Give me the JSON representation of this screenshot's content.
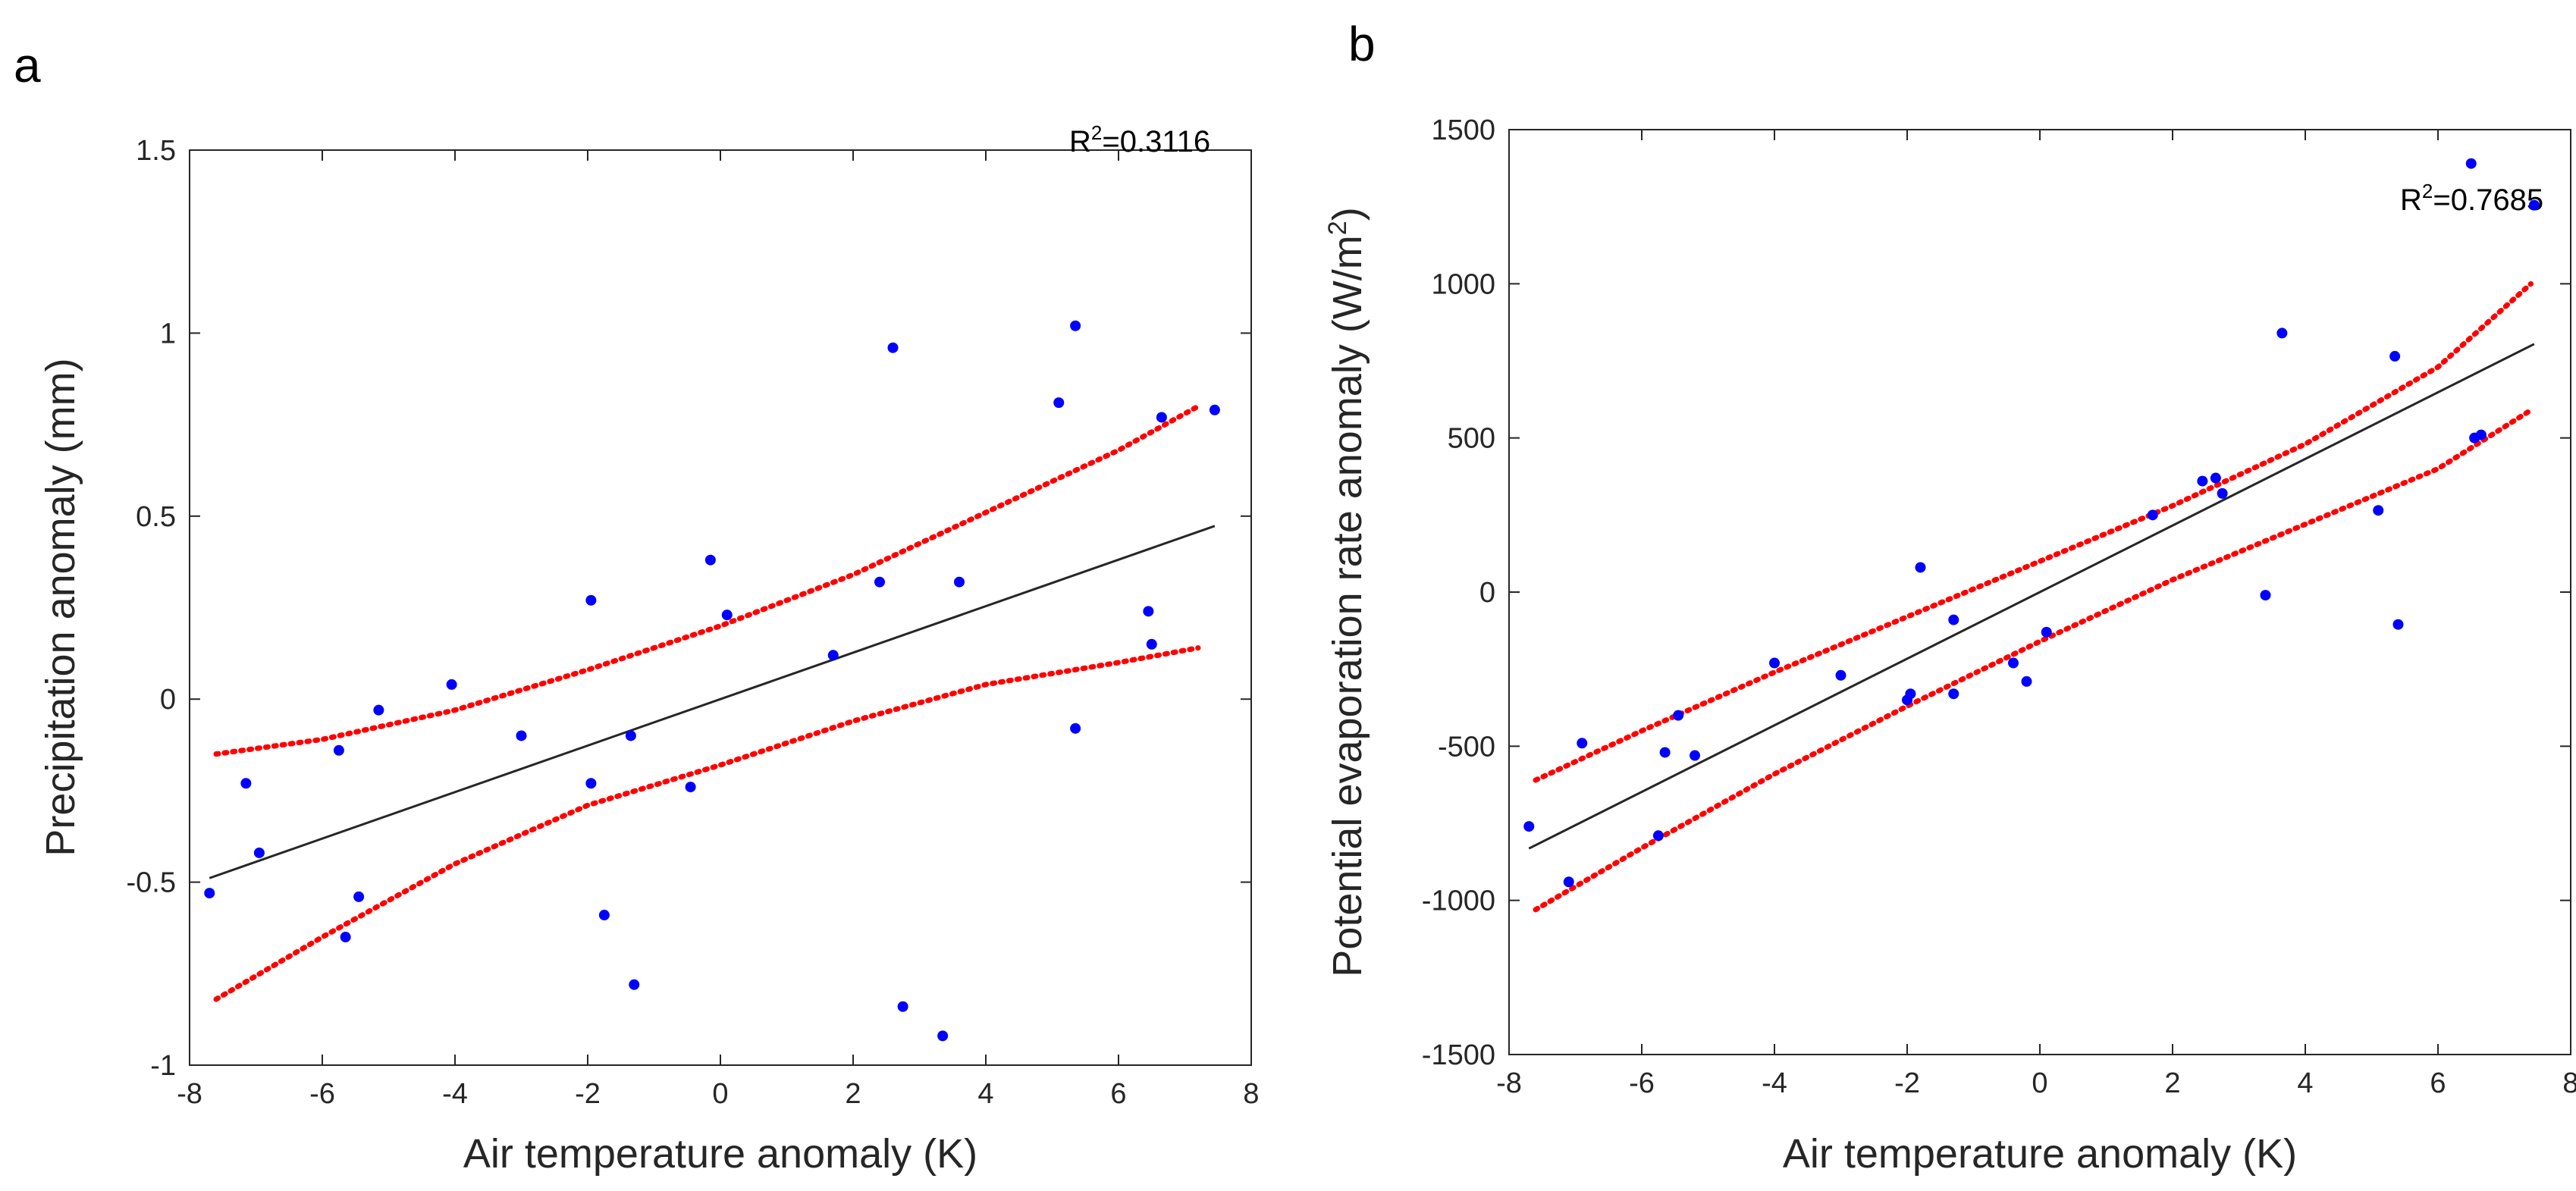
{
  "colors": {
    "points": "#0000ff",
    "fit": "#262626",
    "ci": "#ff0000",
    "axis": "#262626"
  },
  "chart_data": [
    {
      "panel": "a",
      "type": "scatter",
      "xlabel": "Air temperature anomaly (K)",
      "ylabel": "Precipitation anomaly (mm)",
      "xlim": [
        -8,
        8
      ],
      "ylim": [
        -1,
        1.5
      ],
      "xticks": [
        -8,
        -6,
        -4,
        -2,
        0,
        2,
        4,
        6,
        8
      ],
      "yticks": [
        -1,
        -0.5,
        0,
        0.5,
        1,
        1.5
      ],
      "annotation": {
        "prefix": "R",
        "sup": "2",
        "value": "=0.3116"
      },
      "points": {
        "x": [
          -7.7,
          -7.15,
          -6.95,
          -5.75,
          -5.65,
          -5.45,
          -5.15,
          -4.05,
          -3.0,
          -1.95,
          -1.95,
          -1.75,
          -1.35,
          -1.3,
          -0.45,
          -0.15,
          0.1,
          1.7,
          2.4,
          2.6,
          2.75,
          3.35,
          3.6,
          5.1,
          5.35,
          5.35,
          6.45,
          6.5,
          6.65,
          7.45
        ],
        "y": [
          -0.53,
          -0.23,
          -0.42,
          -0.14,
          -0.65,
          -0.54,
          -0.03,
          0.04,
          -0.1,
          0.27,
          -0.23,
          -0.59,
          -0.1,
          -0.78,
          -0.24,
          0.38,
          0.23,
          0.12,
          0.32,
          0.96,
          -0.84,
          -0.92,
          0.32,
          0.81,
          1.02,
          -0.08,
          0.24,
          0.15,
          0.77,
          0.79
        ]
      },
      "fit": {
        "slope": 0.0635,
        "intercept": 0.0,
        "x_range": [
          -7.7,
          7.45
        ]
      },
      "ci": {
        "x": [
          -7.6,
          -6,
          -4,
          -2,
          0,
          2,
          4,
          6,
          7.2
        ],
        "upper": [
          -0.15,
          -0.11,
          -0.03,
          0.08,
          0.2,
          0.34,
          0.51,
          0.68,
          0.8
        ],
        "lower": [
          -0.82,
          -0.65,
          -0.45,
          -0.29,
          -0.18,
          -0.06,
          0.04,
          0.1,
          0.14
        ]
      }
    },
    {
      "panel": "b",
      "type": "scatter",
      "xlabel": "Air temperature anomaly (K)",
      "ylabel_pre": "Potential evaporation rate anomaly (W/m",
      "ylabel_sup": "2",
      "ylabel_post": ")",
      "xlim": [
        -8,
        8
      ],
      "ylim": [
        -1500,
        1500
      ],
      "xticks": [
        -8,
        -6,
        -4,
        -2,
        0,
        2,
        4,
        6,
        8
      ],
      "yticks": [
        -1500,
        -1000,
        -500,
        0,
        500,
        1000,
        1500
      ],
      "annotation": {
        "prefix": "R",
        "sup": "2",
        "value": "=0.7685"
      },
      "points": {
        "x": [
          -7.7,
          -7.1,
          -6.9,
          -5.75,
          -5.65,
          -5.45,
          -5.2,
          -4.0,
          -3.0,
          -2.0,
          -1.95,
          -1.8,
          -1.3,
          -1.3,
          -0.4,
          -0.2,
          0.1,
          1.7,
          2.45,
          2.65,
          2.75,
          3.4,
          3.65,
          5.1,
          5.35,
          5.4,
          6.5,
          6.55,
          6.65,
          7.45
        ],
        "y": [
          -760,
          -940,
          -490,
          -790,
          -520,
          -400,
          -530,
          -230,
          -270,
          -350,
          -330,
          80,
          -90,
          -330,
          -230,
          -290,
          -130,
          250,
          360,
          370,
          320,
          -10,
          840,
          265,
          765,
          -105,
          1390,
          500,
          510,
          1255
        ]
      },
      "fit": {
        "slope": 108,
        "intercept": 0,
        "x_range": [
          -7.7,
          7.45
        ]
      },
      "ci": {
        "x": [
          -7.6,
          -6,
          -4,
          -2,
          0,
          2,
          4,
          6,
          7.4
        ],
        "upper": [
          -610,
          -450,
          -260,
          -80,
          100,
          280,
          480,
          730,
          1000
        ],
        "lower": [
          -1030,
          -830,
          -590,
          -370,
          -160,
          40,
          220,
          400,
          590
        ]
      }
    }
  ]
}
